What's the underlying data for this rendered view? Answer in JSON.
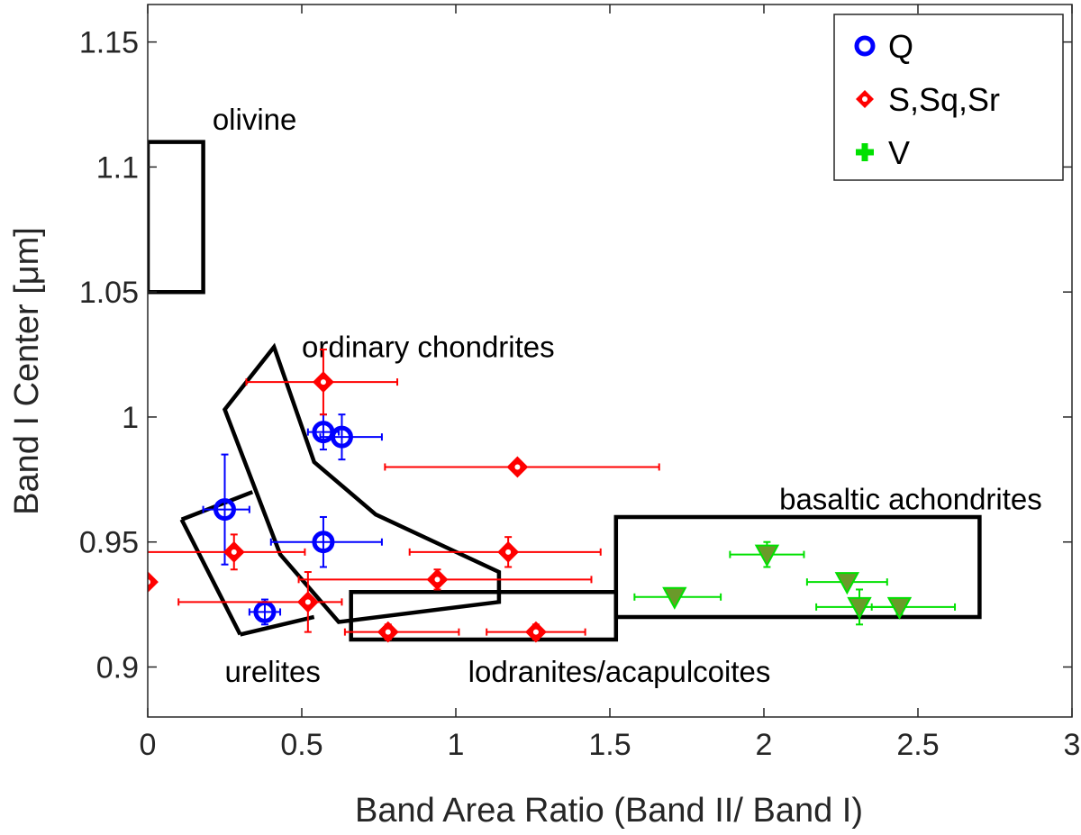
{
  "chart_data": {
    "type": "scatter",
    "title": "",
    "xlabel": "Band Area Ratio (Band II/ Band I)",
    "ylabel": "Band I Center [μm]",
    "xlim": [
      0,
      3
    ],
    "ylim": [
      0.88,
      1.165
    ],
    "xticks": [
      0,
      0.5,
      1,
      1.5,
      2,
      2.5,
      3
    ],
    "xtick_labels": [
      "0",
      "0.5",
      "1",
      "1.5",
      "2",
      "2.5",
      "3"
    ],
    "yticks": [
      0.9,
      0.95,
      1,
      1.05,
      1.1,
      1.15
    ],
    "ytick_labels": [
      "0.9",
      "0.95",
      "1",
      "1.05",
      "1.1",
      "1.15"
    ],
    "grid": false,
    "legend_position": "top-right",
    "series": [
      {
        "name": "Q",
        "marker": "circle",
        "color": "#0000ff",
        "points": [
          {
            "x": 0.57,
            "y": 0.994,
            "xerr": [
              0.05,
              0.05
            ],
            "yerr": [
              0.007,
              0.007
            ]
          },
          {
            "x": 0.63,
            "y": 0.992,
            "xerr": [
              0.07,
              0.13
            ],
            "yerr": [
              0.009,
              0.009
            ]
          },
          {
            "x": 0.25,
            "y": 0.963,
            "xerr": [
              0.07,
              0.08
            ],
            "yerr": [
              0.022,
              0.022
            ]
          },
          {
            "x": 0.57,
            "y": 0.95,
            "xerr": [
              0.17,
              0.19
            ],
            "yerr": [
              0.01,
              0.01
            ]
          },
          {
            "x": 0.38,
            "y": 0.922,
            "xerr": [
              0.05,
              0.05
            ],
            "yerr": [
              0.005,
              0.005
            ]
          }
        ]
      },
      {
        "name": "S,Sq,Sr",
        "marker": "diamond",
        "color": "#ff0000",
        "points": [
          {
            "x": 0.57,
            "y": 1.014,
            "xerr": [
              0.25,
              0.24
            ],
            "yerr": [
              0.013,
              0.013
            ]
          },
          {
            "x": 1.2,
            "y": 0.98,
            "xerr": [
              0.43,
              0.46
            ],
            "yerr": [
              0.002,
              0.002
            ]
          },
          {
            "x": 0.28,
            "y": 0.946,
            "xerr": [
              0.33,
              0.23
            ],
            "yerr": [
              0.007,
              0.007
            ]
          },
          {
            "x": 1.17,
            "y": 0.946,
            "xerr": [
              0.32,
              0.3
            ],
            "yerr": [
              0.006,
              0.006
            ]
          },
          {
            "x": 0.94,
            "y": 0.935,
            "xerr": [
              0.45,
              0.5
            ],
            "yerr": [
              0.004,
              0.004
            ]
          },
          {
            "x": 0.52,
            "y": 0.926,
            "xerr": [
              0.42,
              0.11
            ],
            "yerr": [
              0.012,
              0.012
            ]
          },
          {
            "x": 0.78,
            "y": 0.914,
            "xerr": [
              0.14,
              0.23
            ],
            "yerr": [
              0.003,
              0.003
            ]
          },
          {
            "x": 1.26,
            "y": 0.914,
            "xerr": [
              0.16,
              0.16
            ],
            "yerr": [
              0.003,
              0.003
            ]
          },
          {
            "x": 0.0,
            "y": 0.934,
            "xerr": [
              0.02,
              0.02
            ],
            "yerr": [
              0.0,
              0.0
            ]
          }
        ]
      },
      {
        "name": "V",
        "marker": "triangle-down",
        "color": "#00e000",
        "face_color": "#6a9a2a",
        "points": [
          {
            "x": 1.71,
            "y": 0.928,
            "xerr": [
              0.13,
              0.15
            ],
            "yerr": [
              0.002,
              0.002
            ]
          },
          {
            "x": 2.01,
            "y": 0.945,
            "xerr": [
              0.12,
              0.12
            ],
            "yerr": [
              0.005,
              0.005
            ]
          },
          {
            "x": 2.27,
            "y": 0.934,
            "xerr": [
              0.13,
              0.13
            ],
            "yerr": [
              0.002,
              0.002
            ]
          },
          {
            "x": 2.31,
            "y": 0.924,
            "xerr": [
              0.14,
              0.14
            ],
            "yerr": [
              0.007,
              0.007
            ]
          },
          {
            "x": 2.44,
            "y": 0.924,
            "xerr": [
              0.09,
              0.18
            ],
            "yerr": [
              0.003,
              0.003
            ]
          }
        ]
      }
    ],
    "regions": [
      {
        "name": "olivine",
        "label": "olivine",
        "label_at": [
          0.21,
          1.115
        ],
        "polygon": [
          [
            0,
            1.05
          ],
          [
            0.18,
            1.05
          ],
          [
            0.18,
            1.11
          ],
          [
            0,
            1.11
          ]
        ]
      },
      {
        "name": "ordinary chondrites",
        "label": "ordinary chondrites",
        "label_at": [
          0.5,
          1.024
        ],
        "polygon": [
          [
            0.25,
            1.003
          ],
          [
            0.41,
            1.028
          ],
          [
            0.54,
            0.982
          ],
          [
            0.74,
            0.961
          ],
          [
            1.14,
            0.938
          ],
          [
            1.14,
            0.926
          ],
          [
            0.62,
            0.918
          ],
          [
            0.43,
            0.945
          ]
        ]
      },
      {
        "name": "urelites",
        "label": "urelites",
        "label_at": [
          0.25,
          0.894
        ],
        "polygon": [
          [
            0.11,
            0.959
          ],
          [
            0.34,
            0.97
          ],
          [
            0.3,
            0.913
          ]
        ],
        "segments": [
          [
            [
              0.11,
              0.959
            ],
            [
              0.34,
              0.97
            ]
          ],
          [
            [
              0.11,
              0.959
            ],
            [
              0.3,
              0.913
            ]
          ],
          [
            [
              0.3,
              0.913
            ],
            [
              0.54,
              0.92
            ]
          ]
        ]
      },
      {
        "name": "lodranites/acapulcoites",
        "label": "lodranites/acapulcoites",
        "label_at": [
          1.04,
          0.894
        ],
        "polygon": [
          [
            0.66,
            0.911
          ],
          [
            1.52,
            0.911
          ],
          [
            1.52,
            0.93
          ],
          [
            0.66,
            0.93
          ]
        ]
      },
      {
        "name": "basaltic achondrites",
        "label": "basaltic achondrites",
        "label_at": [
          2.05,
          0.963
        ],
        "polygon": [
          [
            1.52,
            0.92
          ],
          [
            2.7,
            0.92
          ],
          [
            2.7,
            0.96
          ],
          [
            1.52,
            0.96
          ]
        ]
      }
    ]
  }
}
